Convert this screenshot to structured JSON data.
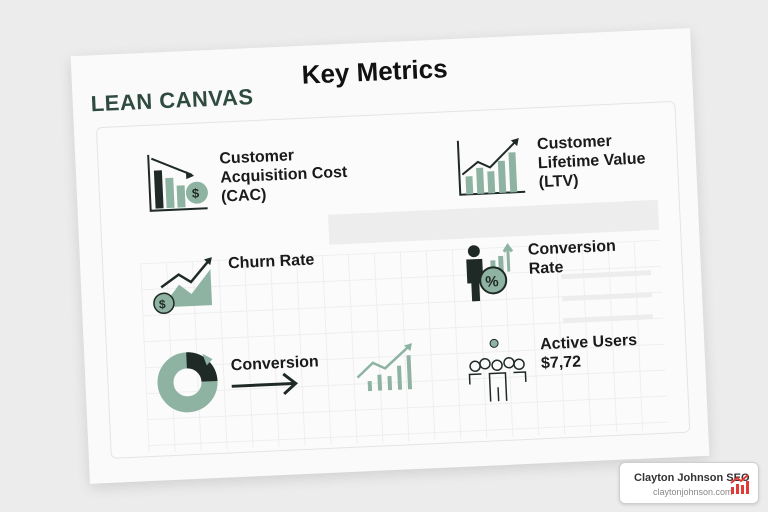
{
  "brand": "LEAN CANVAS",
  "title": "Key Metrics",
  "metrics": [
    {
      "label": "Customer Acquisition Cost (CAC)",
      "icon": "declining-bar-chart-dollar-icon"
    },
    {
      "label": "Customer Lifetime Value (LTV)",
      "icon": "rising-bar-chart-icon"
    },
    {
      "label": "Churn Rate",
      "icon": "rising-area-chart-dollar-icon"
    },
    {
      "label": "Conversion Rate",
      "icon": "person-percent-icon"
    },
    {
      "label": "Conversion",
      "icon": "donut-chart-arrow-icon"
    },
    {
      "label": "Active Users",
      "value": "$7,72",
      "icon": "user-group-icon"
    }
  ],
  "watermark": {
    "name": "Clayton Johnson SEO",
    "url": "claytonjohnson.com",
    "color": "#e53935"
  },
  "colors": {
    "accent": "#8fb3a3",
    "dark": "#1f2a26"
  }
}
